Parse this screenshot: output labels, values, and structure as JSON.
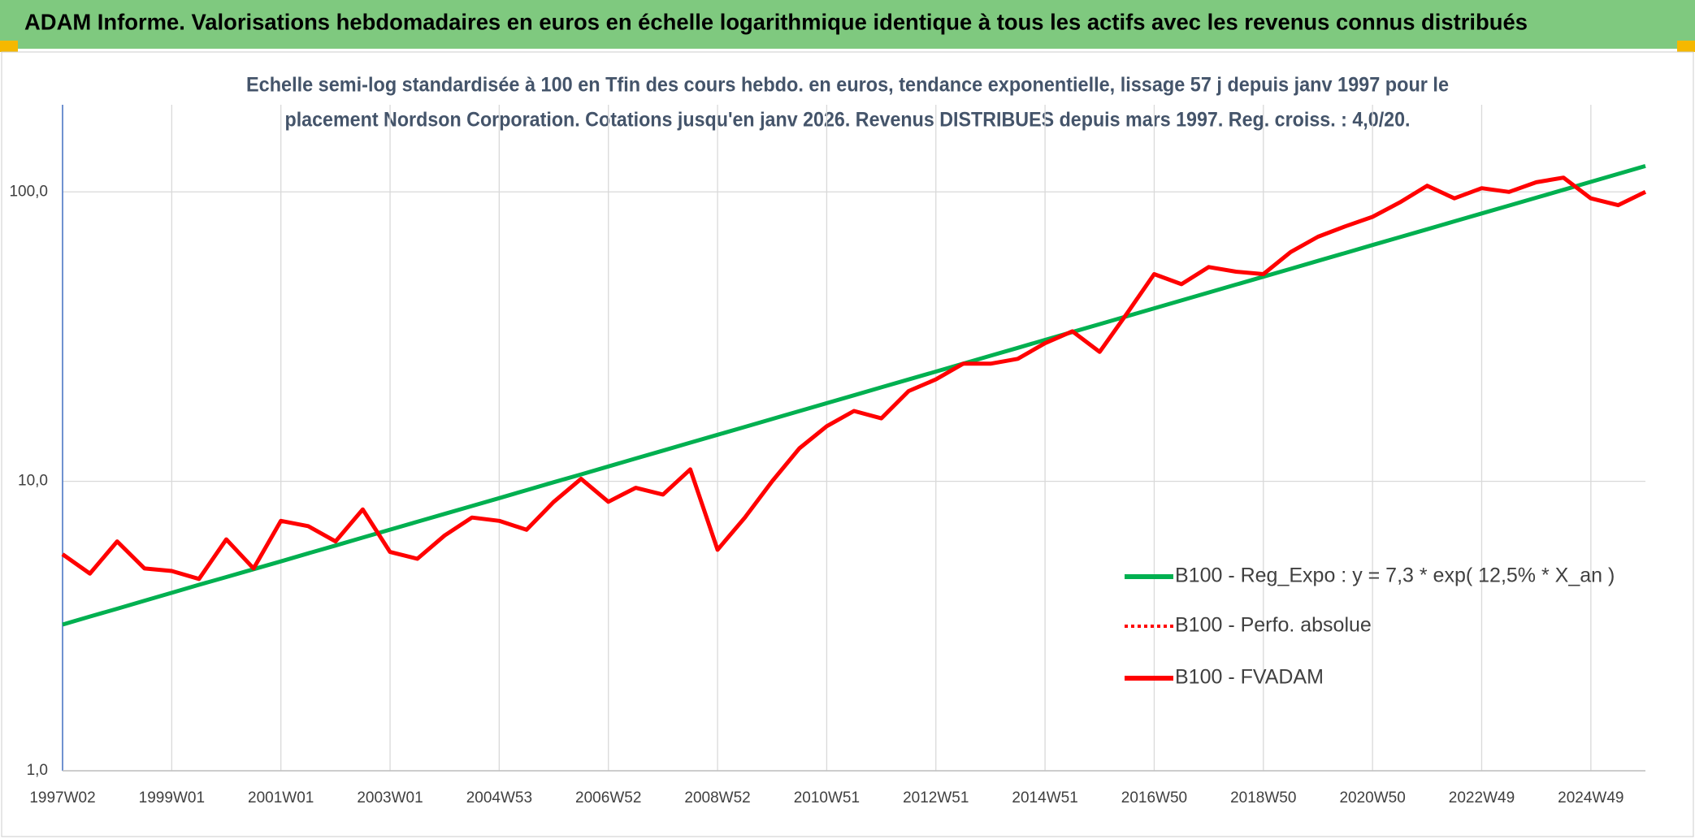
{
  "header": {
    "title": "ADAM Informe. Valorisations hebdomadaires en euros en échelle logarithmique identique à tous les actifs avec les revenus connus distribués"
  },
  "chart_data": {
    "type": "line",
    "title": "Echelle semi-log standardisée à 100 en Tfin des cours hebdo. en euros, tendance exponentielle, lissage 57 j depuis janv 1997 pour le",
    "subtitle": "placement Nordson Corporation. Cotations jusqu'en janv 2026. Revenus DISTRIBUES depuis mars 1997. Reg. croiss. : 4,0/20.",
    "log_scale": true,
    "grid": true,
    "legend": "right",
    "categories": [
      "1997W02",
      null,
      null,
      null,
      "1999W01",
      null,
      null,
      null,
      "2001W01",
      null,
      null,
      null,
      "2003W01",
      null,
      null,
      null,
      "2004W53",
      null,
      null,
      null,
      "2006W52",
      null,
      null,
      null,
      "2008W52",
      null,
      null,
      null,
      "2010W51",
      null,
      null,
      null,
      "2012W51",
      null,
      null,
      null,
      "2014W51",
      null,
      null,
      null,
      "2016W50",
      null,
      null,
      null,
      "2018W50",
      null,
      null,
      null,
      "2020W50",
      null,
      null,
      null,
      "2022W49",
      null,
      null,
      null,
      "2024W49",
      null,
      null
    ],
    "ylim": [
      1,
      200
    ],
    "yticks": [
      {
        "value": 1,
        "label": "1,0"
      },
      {
        "value": 10,
        "label": "10,0"
      },
      {
        "value": 100,
        "label": "100,0"
      }
    ],
    "series": [
      {
        "name": "B100 - Reg_Expo : y = 7,3 * exp( 12,5% *  X_an )",
        "color": "#00b050",
        "style": "solid",
        "values": [
          3.2,
          3.41,
          3.63,
          3.87,
          4.12,
          4.39,
          4.67,
          4.97,
          5.29,
          5.64,
          6.0,
          6.39,
          6.81,
          7.25,
          7.72,
          8.22,
          8.75,
          9.32,
          9.93,
          10.57,
          11.26,
          11.99,
          12.77,
          13.6,
          14.48,
          15.42,
          16.42,
          17.49,
          18.62,
          19.83,
          21.12,
          22.49,
          23.95,
          25.5,
          27.16,
          28.92,
          30.8,
          32.8,
          34.93,
          37.19,
          39.61,
          42.18,
          44.92,
          47.83,
          50.94,
          54.24,
          57.77,
          61.51,
          65.51,
          69.76,
          74.29,
          79.11,
          84.24,
          89.71,
          95.53,
          101.7,
          108.3,
          115.4,
          122.9
        ]
      },
      {
        "name": "B100 - Perfo. absolue",
        "color": "#ff0000",
        "style": "dotted",
        "values": [
          5.6,
          4.8,
          6.2,
          5.0,
          4.9,
          4.6,
          6.3,
          5.0,
          7.3,
          7.0,
          6.2,
          8.0,
          5.7,
          5.4,
          6.5,
          7.5,
          7.3,
          6.8,
          8.5,
          10.2,
          8.5,
          9.5,
          9.0,
          11.0,
          5.8,
          7.5,
          10.0,
          13.0,
          15.5,
          17.5,
          16.5,
          20.5,
          22.5,
          25.5,
          25.5,
          26.5,
          30,
          33,
          28,
          38,
          52,
          48,
          55,
          53,
          52,
          62,
          70,
          76,
          82,
          92,
          105,
          95,
          103,
          100,
          108,
          112,
          95,
          90,
          100
        ]
      },
      {
        "name": "B100 - FVADAM",
        "color": "#ff0000",
        "style": "solid",
        "values": [
          5.6,
          4.8,
          6.2,
          5.0,
          4.9,
          4.6,
          6.3,
          5.0,
          7.3,
          7.0,
          6.2,
          8.0,
          5.7,
          5.4,
          6.5,
          7.5,
          7.3,
          6.8,
          8.5,
          10.2,
          8.5,
          9.5,
          9.0,
          11.0,
          5.8,
          7.5,
          10.0,
          13.0,
          15.5,
          17.5,
          16.5,
          20.5,
          22.5,
          25.5,
          25.5,
          26.5,
          30,
          33,
          28,
          38,
          52,
          48,
          55,
          53,
          52,
          62,
          70,
          76,
          82,
          92,
          105,
          95,
          103,
          100,
          108,
          112,
          95,
          90,
          100
        ]
      }
    ]
  }
}
